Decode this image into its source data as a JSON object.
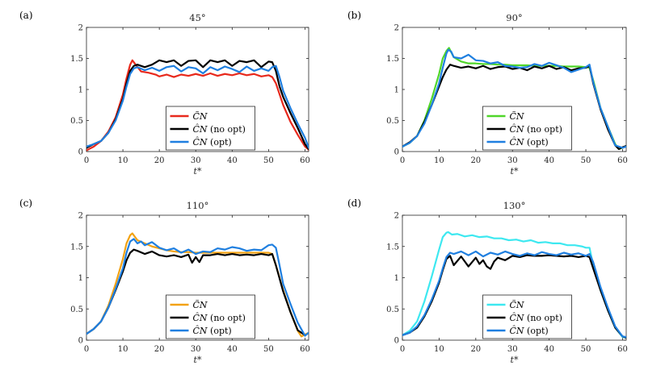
{
  "chart_data": [
    {
      "type": "line",
      "panel_label": "(a)",
      "title": "45°",
      "xlabel": "t*",
      "ylabel": "",
      "xlim": [
        0,
        61
      ],
      "ylim": [
        0,
        2
      ],
      "xticks": [
        "0",
        "10",
        "20",
        "30",
        "40",
        "50",
        "60"
      ],
      "yticks": [
        "0",
        "0.5",
        "1",
        "1.5",
        "2"
      ],
      "legend_position": "bottom-center",
      "series": [
        {
          "name": "C̃_N",
          "legend_label": "C̃N",
          "legend_suffix": "",
          "color": "#e8291c",
          "x": [
            0,
            2,
            4,
            6,
            8,
            10,
            11,
            12,
            12.6,
            13.5,
            15,
            17,
            19,
            20,
            22,
            24,
            26,
            28,
            30,
            32,
            34,
            36,
            38,
            40,
            42,
            44,
            46,
            48,
            50,
            51,
            52,
            54,
            56,
            58,
            60,
            61
          ],
          "y": [
            0.02,
            0.08,
            0.17,
            0.32,
            0.55,
            0.92,
            1.18,
            1.4,
            1.47,
            1.4,
            1.29,
            1.27,
            1.24,
            1.21,
            1.24,
            1.2,
            1.24,
            1.22,
            1.25,
            1.22,
            1.26,
            1.22,
            1.25,
            1.23,
            1.26,
            1.23,
            1.25,
            1.21,
            1.23,
            1.2,
            1.1,
            0.75,
            0.48,
            0.27,
            0.08,
            0.03
          ]
        },
        {
          "name": "Ĉ_N (no opt)",
          "legend_label": "ĈN",
          "legend_suffix": " (no opt)",
          "color": "#000000",
          "x": [
            0,
            2,
            4,
            6,
            8,
            10,
            11,
            12,
            13,
            14,
            16,
            18,
            20,
            22,
            24,
            26,
            28,
            30,
            32,
            34,
            36,
            38,
            40,
            42,
            44,
            46,
            48,
            50,
            51,
            52,
            53,
            54,
            56,
            58,
            60,
            61
          ],
          "y": [
            0.06,
            0.12,
            0.17,
            0.3,
            0.52,
            0.85,
            1.1,
            1.3,
            1.38,
            1.4,
            1.36,
            1.4,
            1.47,
            1.44,
            1.47,
            1.38,
            1.46,
            1.47,
            1.36,
            1.47,
            1.44,
            1.47,
            1.38,
            1.46,
            1.44,
            1.47,
            1.36,
            1.45,
            1.44,
            1.3,
            1.05,
            0.88,
            0.62,
            0.38,
            0.12,
            0.04
          ]
        },
        {
          "name": "Ĉ_N (opt)",
          "legend_label": "ĈN",
          "legend_suffix": " (opt)",
          "color": "#1f7fe0",
          "x": [
            0,
            2,
            4,
            6,
            8,
            10,
            11,
            12,
            13,
            14,
            16,
            18,
            20,
            22,
            24,
            26,
            28,
            30,
            32,
            34,
            36,
            38,
            40,
            42,
            44,
            46,
            48,
            50,
            51,
            52,
            53,
            54,
            56,
            58,
            60,
            61
          ],
          "y": [
            0.08,
            0.12,
            0.17,
            0.3,
            0.5,
            0.82,
            1.05,
            1.25,
            1.34,
            1.36,
            1.31,
            1.35,
            1.3,
            1.36,
            1.38,
            1.29,
            1.36,
            1.34,
            1.26,
            1.36,
            1.31,
            1.37,
            1.33,
            1.28,
            1.37,
            1.3,
            1.34,
            1.3,
            1.36,
            1.38,
            1.2,
            0.98,
            0.7,
            0.45,
            0.22,
            0.06
          ]
        }
      ]
    },
    {
      "type": "line",
      "panel_label": "(b)",
      "title": "90°",
      "xlabel": "t*",
      "ylabel": "",
      "xlim": [
        0,
        61
      ],
      "ylim": [
        0,
        2
      ],
      "xticks": [
        "0",
        "10",
        "20",
        "30",
        "40",
        "50",
        "60"
      ],
      "yticks": [
        "0",
        "0.5",
        "1",
        "1.5",
        "2"
      ],
      "legend_position": "bottom-center",
      "series": [
        {
          "name": "C̃_N",
          "legend_label": "C̃N",
          "legend_suffix": "",
          "color": "#4fd629",
          "x": [
            0,
            2,
            4,
            6,
            8,
            10,
            11,
            12,
            12.7,
            14,
            16,
            18,
            20,
            22,
            24,
            26,
            28,
            30,
            32,
            34,
            36,
            38,
            40,
            42,
            44,
            46,
            48,
            50,
            51,
            52,
            54,
            56,
            58,
            59,
            60,
            61
          ],
          "y": [
            0.08,
            0.14,
            0.25,
            0.5,
            0.85,
            1.25,
            1.5,
            1.62,
            1.67,
            1.52,
            1.45,
            1.42,
            1.42,
            1.41,
            1.41,
            1.4,
            1.4,
            1.39,
            1.39,
            1.39,
            1.38,
            1.38,
            1.38,
            1.38,
            1.37,
            1.37,
            1.37,
            1.36,
            1.35,
            1.15,
            0.7,
            0.4,
            0.12,
            0.04,
            0.06,
            0.09
          ]
        },
        {
          "name": "Ĉ_N (no opt)",
          "legend_label": "ĈN",
          "legend_suffix": " (no opt)",
          "color": "#000000",
          "x": [
            0,
            2,
            4,
            6,
            8,
            10,
            11,
            12,
            13,
            14,
            16,
            18,
            20,
            22,
            24,
            26,
            28,
            30,
            32,
            34,
            36,
            38,
            40,
            42,
            44,
            46,
            48,
            50,
            51,
            52,
            54,
            56,
            58,
            59,
            60,
            61
          ],
          "y": [
            0.08,
            0.15,
            0.25,
            0.48,
            0.75,
            1.05,
            1.2,
            1.32,
            1.4,
            1.38,
            1.35,
            1.37,
            1.34,
            1.38,
            1.33,
            1.36,
            1.37,
            1.33,
            1.35,
            1.31,
            1.37,
            1.34,
            1.38,
            1.33,
            1.36,
            1.31,
            1.34,
            1.35,
            1.38,
            1.1,
            0.68,
            0.36,
            0.1,
            0.04,
            0.07,
            0.09
          ]
        },
        {
          "name": "Ĉ_N (opt)",
          "legend_label": "ĈN",
          "legend_suffix": " (opt)",
          "color": "#1f7fe0",
          "x": [
            0,
            2,
            4,
            6,
            8,
            10,
            11,
            12,
            12.5,
            13.3,
            14,
            16,
            18,
            20,
            22,
            24,
            26,
            28,
            30,
            32,
            34,
            36,
            38,
            40,
            42,
            44,
            46,
            48,
            50,
            51,
            52,
            54,
            56,
            58,
            60,
            61
          ],
          "y": [
            0.08,
            0.14,
            0.25,
            0.45,
            0.75,
            1.1,
            1.35,
            1.58,
            1.64,
            1.61,
            1.52,
            1.5,
            1.56,
            1.47,
            1.46,
            1.42,
            1.44,
            1.38,
            1.37,
            1.35,
            1.36,
            1.41,
            1.38,
            1.43,
            1.39,
            1.35,
            1.28,
            1.32,
            1.36,
            1.4,
            1.12,
            0.7,
            0.4,
            0.1,
            0.06,
            0.08
          ]
        }
      ]
    },
    {
      "type": "line",
      "panel_label": "(c)",
      "title": "110°",
      "xlabel": "t*",
      "ylabel": "",
      "xlim": [
        0,
        61
      ],
      "ylim": [
        0,
        2
      ],
      "xticks": [
        "0",
        "10",
        "20",
        "30",
        "40",
        "50",
        "60"
      ],
      "yticks": [
        "0",
        "0.5",
        "1",
        "1.5",
        "2"
      ],
      "legend_position": "bottom-center",
      "series": [
        {
          "name": "C̃_N",
          "legend_label": "C̃N",
          "legend_suffix": "",
          "color": "#f2a214",
          "x": [
            0,
            2,
            4,
            6,
            8,
            10,
            11,
            12,
            12.6,
            14,
            16,
            18,
            20,
            22,
            24,
            26,
            28,
            30,
            32,
            34,
            36,
            38,
            40,
            42,
            44,
            46,
            48,
            50,
            51,
            52,
            54,
            56,
            58,
            59,
            60,
            61
          ],
          "y": [
            0.1,
            0.18,
            0.3,
            0.55,
            0.9,
            1.3,
            1.55,
            1.68,
            1.71,
            1.6,
            1.55,
            1.5,
            1.47,
            1.44,
            1.42,
            1.41,
            1.41,
            1.4,
            1.4,
            1.4,
            1.4,
            1.4,
            1.4,
            1.4,
            1.4,
            1.4,
            1.4,
            1.4,
            1.38,
            1.2,
            0.8,
            0.45,
            0.15,
            0.06,
            0.09,
            0.12
          ]
        },
        {
          "name": "Ĉ_N (no opt)",
          "legend_label": "ĈN",
          "legend_suffix": " (no opt)",
          "color": "#000000",
          "x": [
            0,
            2,
            4,
            6,
            8,
            10,
            11,
            12,
            13,
            14,
            16,
            18,
            20,
            22,
            24,
            26,
            28,
            29,
            30,
            31,
            32,
            34,
            36,
            38,
            40,
            42,
            44,
            46,
            48,
            50,
            51,
            52,
            54,
            56,
            58,
            60
          ],
          "y": [
            0.1,
            0.18,
            0.3,
            0.52,
            0.8,
            1.1,
            1.28,
            1.4,
            1.45,
            1.43,
            1.38,
            1.42,
            1.36,
            1.34,
            1.36,
            1.33,
            1.37,
            1.24,
            1.33,
            1.25,
            1.36,
            1.36,
            1.38,
            1.36,
            1.38,
            1.36,
            1.37,
            1.36,
            1.38,
            1.36,
            1.38,
            1.2,
            0.78,
            0.45,
            0.16,
            0.08
          ]
        },
        {
          "name": "Ĉ_N (opt)",
          "legend_label": "ĈN",
          "legend_suffix": " (opt)",
          "color": "#1f7fe0",
          "x": [
            0,
            2,
            4,
            6,
            8,
            10,
            11,
            12,
            13,
            14,
            15,
            16,
            18,
            20,
            22,
            24,
            26,
            28,
            30,
            32,
            34,
            36,
            38,
            40,
            42,
            44,
            46,
            48,
            50,
            51,
            52,
            53,
            54,
            56,
            58,
            60,
            61
          ],
          "y": [
            0.1,
            0.18,
            0.3,
            0.52,
            0.82,
            1.15,
            1.4,
            1.58,
            1.62,
            1.55,
            1.58,
            1.52,
            1.57,
            1.48,
            1.44,
            1.47,
            1.4,
            1.45,
            1.38,
            1.42,
            1.41,
            1.47,
            1.45,
            1.49,
            1.47,
            1.43,
            1.45,
            1.44,
            1.52,
            1.53,
            1.48,
            1.2,
            0.9,
            0.58,
            0.28,
            0.07,
            0.12
          ]
        }
      ]
    },
    {
      "type": "line",
      "panel_label": "(d)",
      "title": "130°",
      "xlabel": "t*",
      "ylabel": "",
      "xlim": [
        0,
        61
      ],
      "ylim": [
        0,
        2
      ],
      "xticks": [
        "0",
        "10",
        "20",
        "30",
        "40",
        "50",
        "60"
      ],
      "yticks": [
        "0",
        "0.5",
        "1",
        "1.5",
        "2"
      ],
      "legend_position": "bottom-center",
      "series": [
        {
          "name": "C̃_N",
          "legend_label": "C̃N",
          "legend_suffix": "",
          "color": "#3de8f0",
          "x": [
            0,
            2,
            4,
            6,
            8,
            10,
            11,
            12,
            12.5,
            13.5,
            15,
            17,
            19,
            21,
            23,
            25,
            27,
            29,
            31,
            33,
            35,
            37,
            39,
            41,
            43,
            45,
            47,
            49,
            50,
            51,
            52,
            54,
            56,
            58,
            60,
            61
          ],
          "y": [
            0.08,
            0.15,
            0.3,
            0.62,
            1.02,
            1.45,
            1.65,
            1.72,
            1.73,
            1.69,
            1.7,
            1.66,
            1.68,
            1.65,
            1.66,
            1.63,
            1.63,
            1.6,
            1.61,
            1.58,
            1.6,
            1.56,
            1.57,
            1.55,
            1.55,
            1.52,
            1.52,
            1.5,
            1.48,
            1.48,
            1.2,
            0.8,
            0.48,
            0.2,
            0.05,
            0.04
          ]
        },
        {
          "name": "Ĉ_N (no opt)",
          "legend_label": "ĈN",
          "legend_suffix": " (no opt)",
          "color": "#000000",
          "x": [
            0,
            2,
            4,
            6,
            8,
            10,
            11,
            12,
            13,
            14,
            16,
            18,
            20,
            21,
            22,
            23,
            24,
            25,
            26,
            28,
            30,
            32,
            34,
            36,
            38,
            40,
            42,
            44,
            46,
            48,
            50,
            51,
            52,
            54,
            56,
            58,
            60,
            61
          ],
          "y": [
            0.08,
            0.12,
            0.2,
            0.38,
            0.62,
            0.92,
            1.12,
            1.3,
            1.35,
            1.2,
            1.34,
            1.18,
            1.32,
            1.22,
            1.28,
            1.18,
            1.14,
            1.26,
            1.32,
            1.28,
            1.35,
            1.33,
            1.36,
            1.35,
            1.35,
            1.36,
            1.35,
            1.34,
            1.35,
            1.33,
            1.35,
            1.33,
            1.15,
            0.8,
            0.48,
            0.2,
            0.06,
            0.04
          ]
        },
        {
          "name": "Ĉ_N (opt)",
          "legend_label": "ĈN",
          "legend_suffix": " (opt)",
          "color": "#1f7fe0",
          "x": [
            0,
            2,
            4,
            6,
            8,
            10,
            11,
            12,
            13,
            14,
            16,
            18,
            20,
            22,
            24,
            26,
            28,
            30,
            32,
            34,
            36,
            38,
            40,
            42,
            44,
            46,
            48,
            50,
            51,
            52,
            54,
            56,
            58,
            60,
            61
          ],
          "y": [
            0.08,
            0.12,
            0.22,
            0.4,
            0.65,
            0.95,
            1.15,
            1.33,
            1.4,
            1.38,
            1.42,
            1.36,
            1.42,
            1.34,
            1.4,
            1.37,
            1.42,
            1.38,
            1.35,
            1.39,
            1.36,
            1.41,
            1.38,
            1.36,
            1.4,
            1.37,
            1.39,
            1.35,
            1.38,
            1.25,
            0.85,
            0.52,
            0.22,
            0.06,
            0.05
          ]
        }
      ]
    }
  ]
}
